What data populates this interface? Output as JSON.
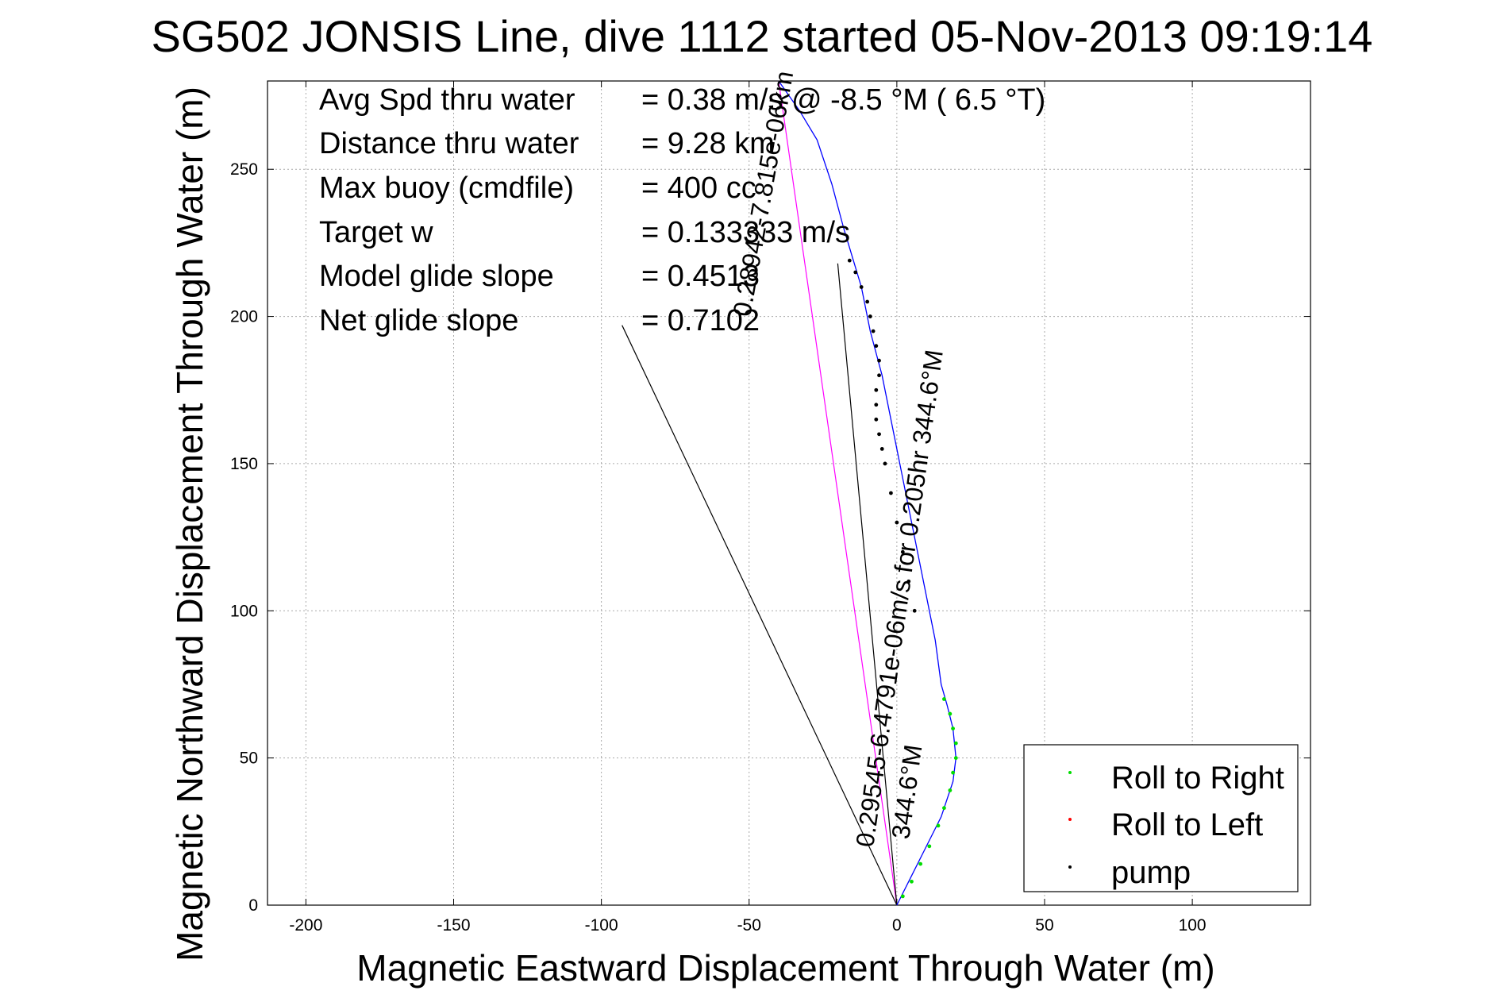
{
  "chart_data": {
    "type": "scatter",
    "title": "SG502 JONSIS Line, dive 1112 started 05-Nov-2013 09:19:14",
    "xlabel": "Magnetic Eastward Displacement Through Water (m)",
    "ylabel": "Magnetic Northward Displacement Through Water (m)",
    "xlim": [
      -213,
      140
    ],
    "ylim": [
      0,
      280
    ],
    "x_ticks": [
      -200,
      -150,
      -100,
      -50,
      0,
      50,
      100
    ],
    "y_ticks": [
      0,
      50,
      100,
      150,
      200,
      250
    ],
    "grid": true,
    "legend_position": "bottom-right",
    "stats": [
      {
        "label": "Avg Spd thru water",
        "value": "= 0.38 m/s @  -8.5 °M (  6.5 °T)"
      },
      {
        "label": "Distance thru water",
        "value": "= 9.28 km"
      },
      {
        "label": "Max buoy (cmdfile)",
        "value": "= 400 cc"
      },
      {
        "label": "Target w",
        "value": "= 0.133333 m/s"
      },
      {
        "label": "Model glide slope",
        "value": "= 0.4513"
      },
      {
        "label": "Net glide slope",
        "value": "= 0.7102"
      }
    ],
    "annotations": [
      "0.29545-6.4791e-06m/s for 0.205hr 344.6°M",
      "344.6°M",
      "0.28942-7.815e-06km"
    ],
    "legend": [
      {
        "name": "Roll to Right",
        "color": "#00dd00"
      },
      {
        "name": "Roll to Left",
        "color": "#ff0000"
      },
      {
        "name": "pump",
        "color": "#000000"
      }
    ],
    "series": [
      {
        "name": "track",
        "color": "#0000ff",
        "x": [
          0,
          5,
          10,
          15,
          19,
          20,
          19,
          17,
          15,
          13,
          10,
          7,
          3,
          -1,
          -5,
          -9,
          -12,
          -15,
          -18,
          -22,
          -27,
          -33,
          -40
        ],
        "y": [
          0,
          10,
          20,
          30,
          42,
          50,
          60,
          68,
          75,
          90,
          105,
          120,
          140,
          160,
          180,
          195,
          210,
          220,
          230,
          245,
          260,
          270,
          280
        ]
      },
      {
        "name": "Roll to Right",
        "color": "#00dd00",
        "x": [
          2,
          5,
          8,
          11,
          14,
          16,
          18,
          19,
          20,
          20,
          19,
          18,
          16
        ],
        "y": [
          3,
          8,
          14,
          20,
          27,
          33,
          39,
          45,
          50,
          55,
          60,
          65,
          70
        ]
      },
      {
        "name": "pump",
        "color": "#000000",
        "x": [
          6,
          4,
          2,
          0,
          -2,
          -4,
          -5,
          -6,
          -7,
          -7,
          -7,
          -6,
          -6,
          -7,
          -8,
          -9,
          -10,
          -12,
          -14,
          -16
        ],
        "y": [
          100,
          110,
          120,
          130,
          140,
          150,
          155,
          160,
          165,
          170,
          175,
          180,
          185,
          190,
          195,
          200,
          205,
          210,
          215,
          219
        ]
      }
    ],
    "lines": [
      {
        "name": "heading-1",
        "color": "#ff00ff",
        "x": [
          0,
          -40
        ],
        "y": [
          0,
          280
        ]
      },
      {
        "name": "glide-1",
        "color": "#000000",
        "x": [
          0,
          -93
        ],
        "y": [
          0,
          197
        ]
      },
      {
        "name": "glide-2",
        "color": "#000000",
        "x": [
          0,
          -20
        ],
        "y": [
          0,
          218
        ]
      }
    ]
  }
}
